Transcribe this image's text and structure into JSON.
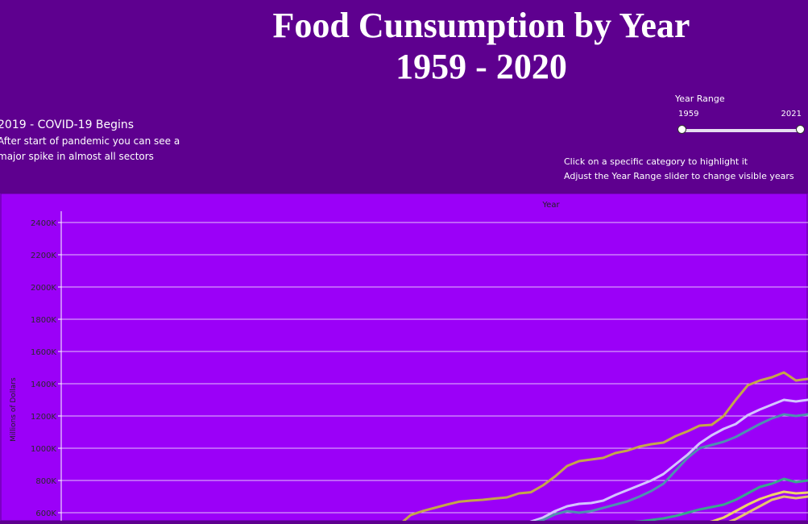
{
  "header": {
    "title_line1": "Food Cunsumption by Year",
    "title_line2": "1959 - 2020"
  },
  "annotation": {
    "title": "2019 - COVID-19 Begins",
    "line1": "After start of pandemic you can see a",
    "line2": "major spike in almost all sectors"
  },
  "year_range": {
    "label": "Year Range",
    "min_label": "1959",
    "max_label": "2021",
    "min_value": 1959,
    "max_value": 2021
  },
  "instructions": {
    "line1": "Click on a specific category to highlight it",
    "line2": "Adjust the Year Range slider to change visible years"
  },
  "chart_data": {
    "type": "line",
    "xlabel": "Year",
    "ylabel": "Millions of Dollars",
    "ytick_labels": [
      "600K",
      "800K",
      "1000K",
      "1200K",
      "1400K",
      "1600K",
      "1800K",
      "2000K",
      "2200K",
      "2400K"
    ],
    "yticks": [
      600,
      800,
      1000,
      1200,
      1400,
      1600,
      1800,
      2000,
      2200,
      2400
    ],
    "ylim": [
      500,
      2450
    ],
    "xlim": [
      1959,
      2021
    ],
    "grid": true,
    "background": "#9b00f8",
    "series": [
      {
        "color": "#c5a64a",
        "x": [
          1987,
          1988,
          1989,
          1990,
          1991,
          1992,
          1993,
          1994,
          1995,
          1996,
          1997,
          1998,
          1999,
          2000,
          2001,
          2002,
          2003,
          2004,
          2005,
          2006,
          2007,
          2008,
          2009,
          2010,
          2011,
          2012,
          2013,
          2014,
          2015,
          2016,
          2017,
          2018,
          2019,
          2020,
          2021
        ],
        "y": [
          520,
          585,
          610,
          630,
          650,
          668,
          675,
          680,
          688,
          695,
          720,
          727,
          770,
          825,
          890,
          920,
          930,
          940,
          970,
          985,
          1010,
          1025,
          1035,
          1075,
          1105,
          1140,
          1145,
          1200,
          1300,
          1390,
          1420,
          1440,
          1470,
          1420,
          1430
        ]
      },
      {
        "color": "#d4c4ff",
        "x": [
          1997,
          1998,
          1999,
          2000,
          2001,
          2002,
          2003,
          2004,
          2005,
          2006,
          2007,
          2008,
          2009,
          2010,
          2011,
          2012,
          2013,
          2014,
          2015,
          2016,
          2017,
          2018,
          2019,
          2020,
          2021
        ],
        "y": [
          520,
          545,
          570,
          610,
          640,
          655,
          660,
          675,
          710,
          740,
          770,
          800,
          840,
          900,
          960,
          1030,
          1080,
          1120,
          1150,
          1205,
          1240,
          1270,
          1300,
          1290,
          1300
        ]
      },
      {
        "color": "#4f8fb0",
        "x": [
          1997,
          1998,
          1999,
          2000,
          2001,
          2002,
          2003,
          2004,
          2005,
          2006,
          2007,
          2008,
          2009,
          2010,
          2011,
          2012,
          2013,
          2014,
          2015,
          2016,
          2017,
          2018,
          2019,
          2020,
          2021
        ],
        "y": [
          515,
          535,
          555,
          590,
          610,
          600,
          610,
          630,
          650,
          670,
          700,
          735,
          780,
          860,
          940,
          1000,
          1020,
          1040,
          1070,
          1110,
          1150,
          1185,
          1210,
          1200,
          1210
        ]
      },
      {
        "color": "#3aa68d",
        "x": [
          2006,
          2007,
          2008,
          2009,
          2010,
          2011,
          2012,
          2013,
          2014,
          2015,
          2016,
          2017,
          2018,
          2019,
          2020,
          2021
        ],
        "y": [
          540,
          545,
          555,
          565,
          580,
          600,
          620,
          635,
          650,
          680,
          720,
          760,
          780,
          810,
          790,
          800
        ]
      },
      {
        "color": "#f0d36a",
        "x": [
          2012,
          2013,
          2014,
          2015,
          2016,
          2017,
          2018,
          2019,
          2020,
          2021
        ],
        "y": [
          530,
          545,
          570,
          610,
          650,
          685,
          710,
          730,
          720,
          725
        ]
      },
      {
        "color": "#e6c170",
        "x": [
          2013,
          2014,
          2015,
          2016,
          2017,
          2018,
          2019,
          2020,
          2021
        ],
        "y": [
          520,
          530,
          560,
          600,
          640,
          680,
          700,
          690,
          700
        ]
      }
    ]
  }
}
